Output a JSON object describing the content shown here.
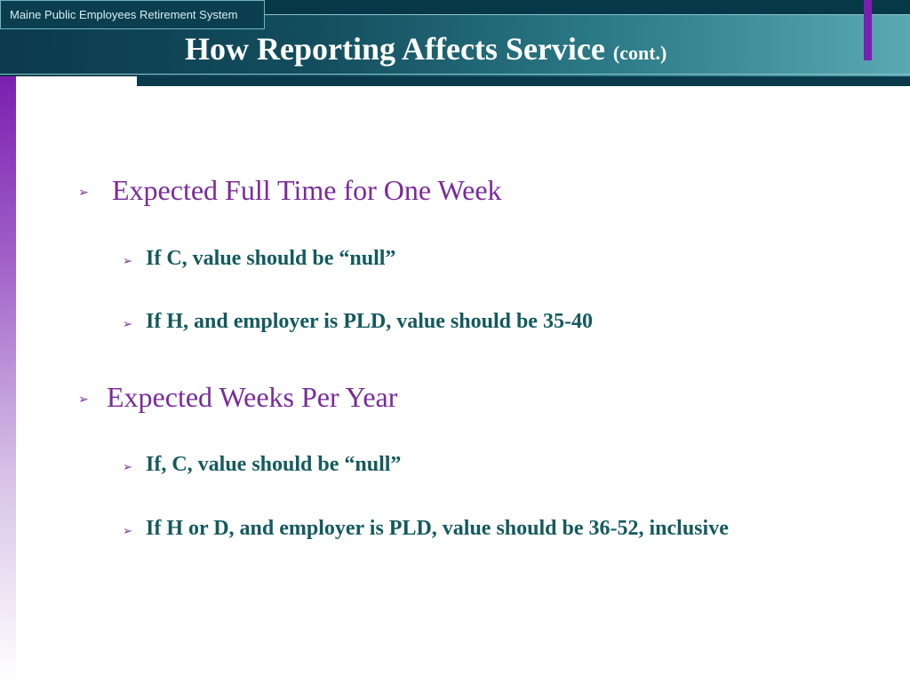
{
  "header": {
    "organization": "Maine Public Employees Retirement System",
    "title": "How Reporting Affects Service",
    "title_suffix": "(cont.)"
  },
  "colors": {
    "header_dark": "#0b3a4c",
    "header_light": "#5aa8b2",
    "accent_purple": "#7a1fb0",
    "level1_text": "#7a2a9a",
    "level2_text": "#135a5e"
  },
  "bullet_icon": "chevron-right-outline-icon",
  "content": {
    "sections": [
      {
        "heading": "Expected Full Time for One Week",
        "items": [
          "If C, value should be “null”",
          "If H, and employer is PLD, value should be 35-40"
        ]
      },
      {
        "heading": "Expected Weeks Per Year",
        "items": [
          "If, C, value should be “null”",
          "If H or D, and employer is PLD, value should be 36-52, inclusive"
        ]
      }
    ]
  }
}
